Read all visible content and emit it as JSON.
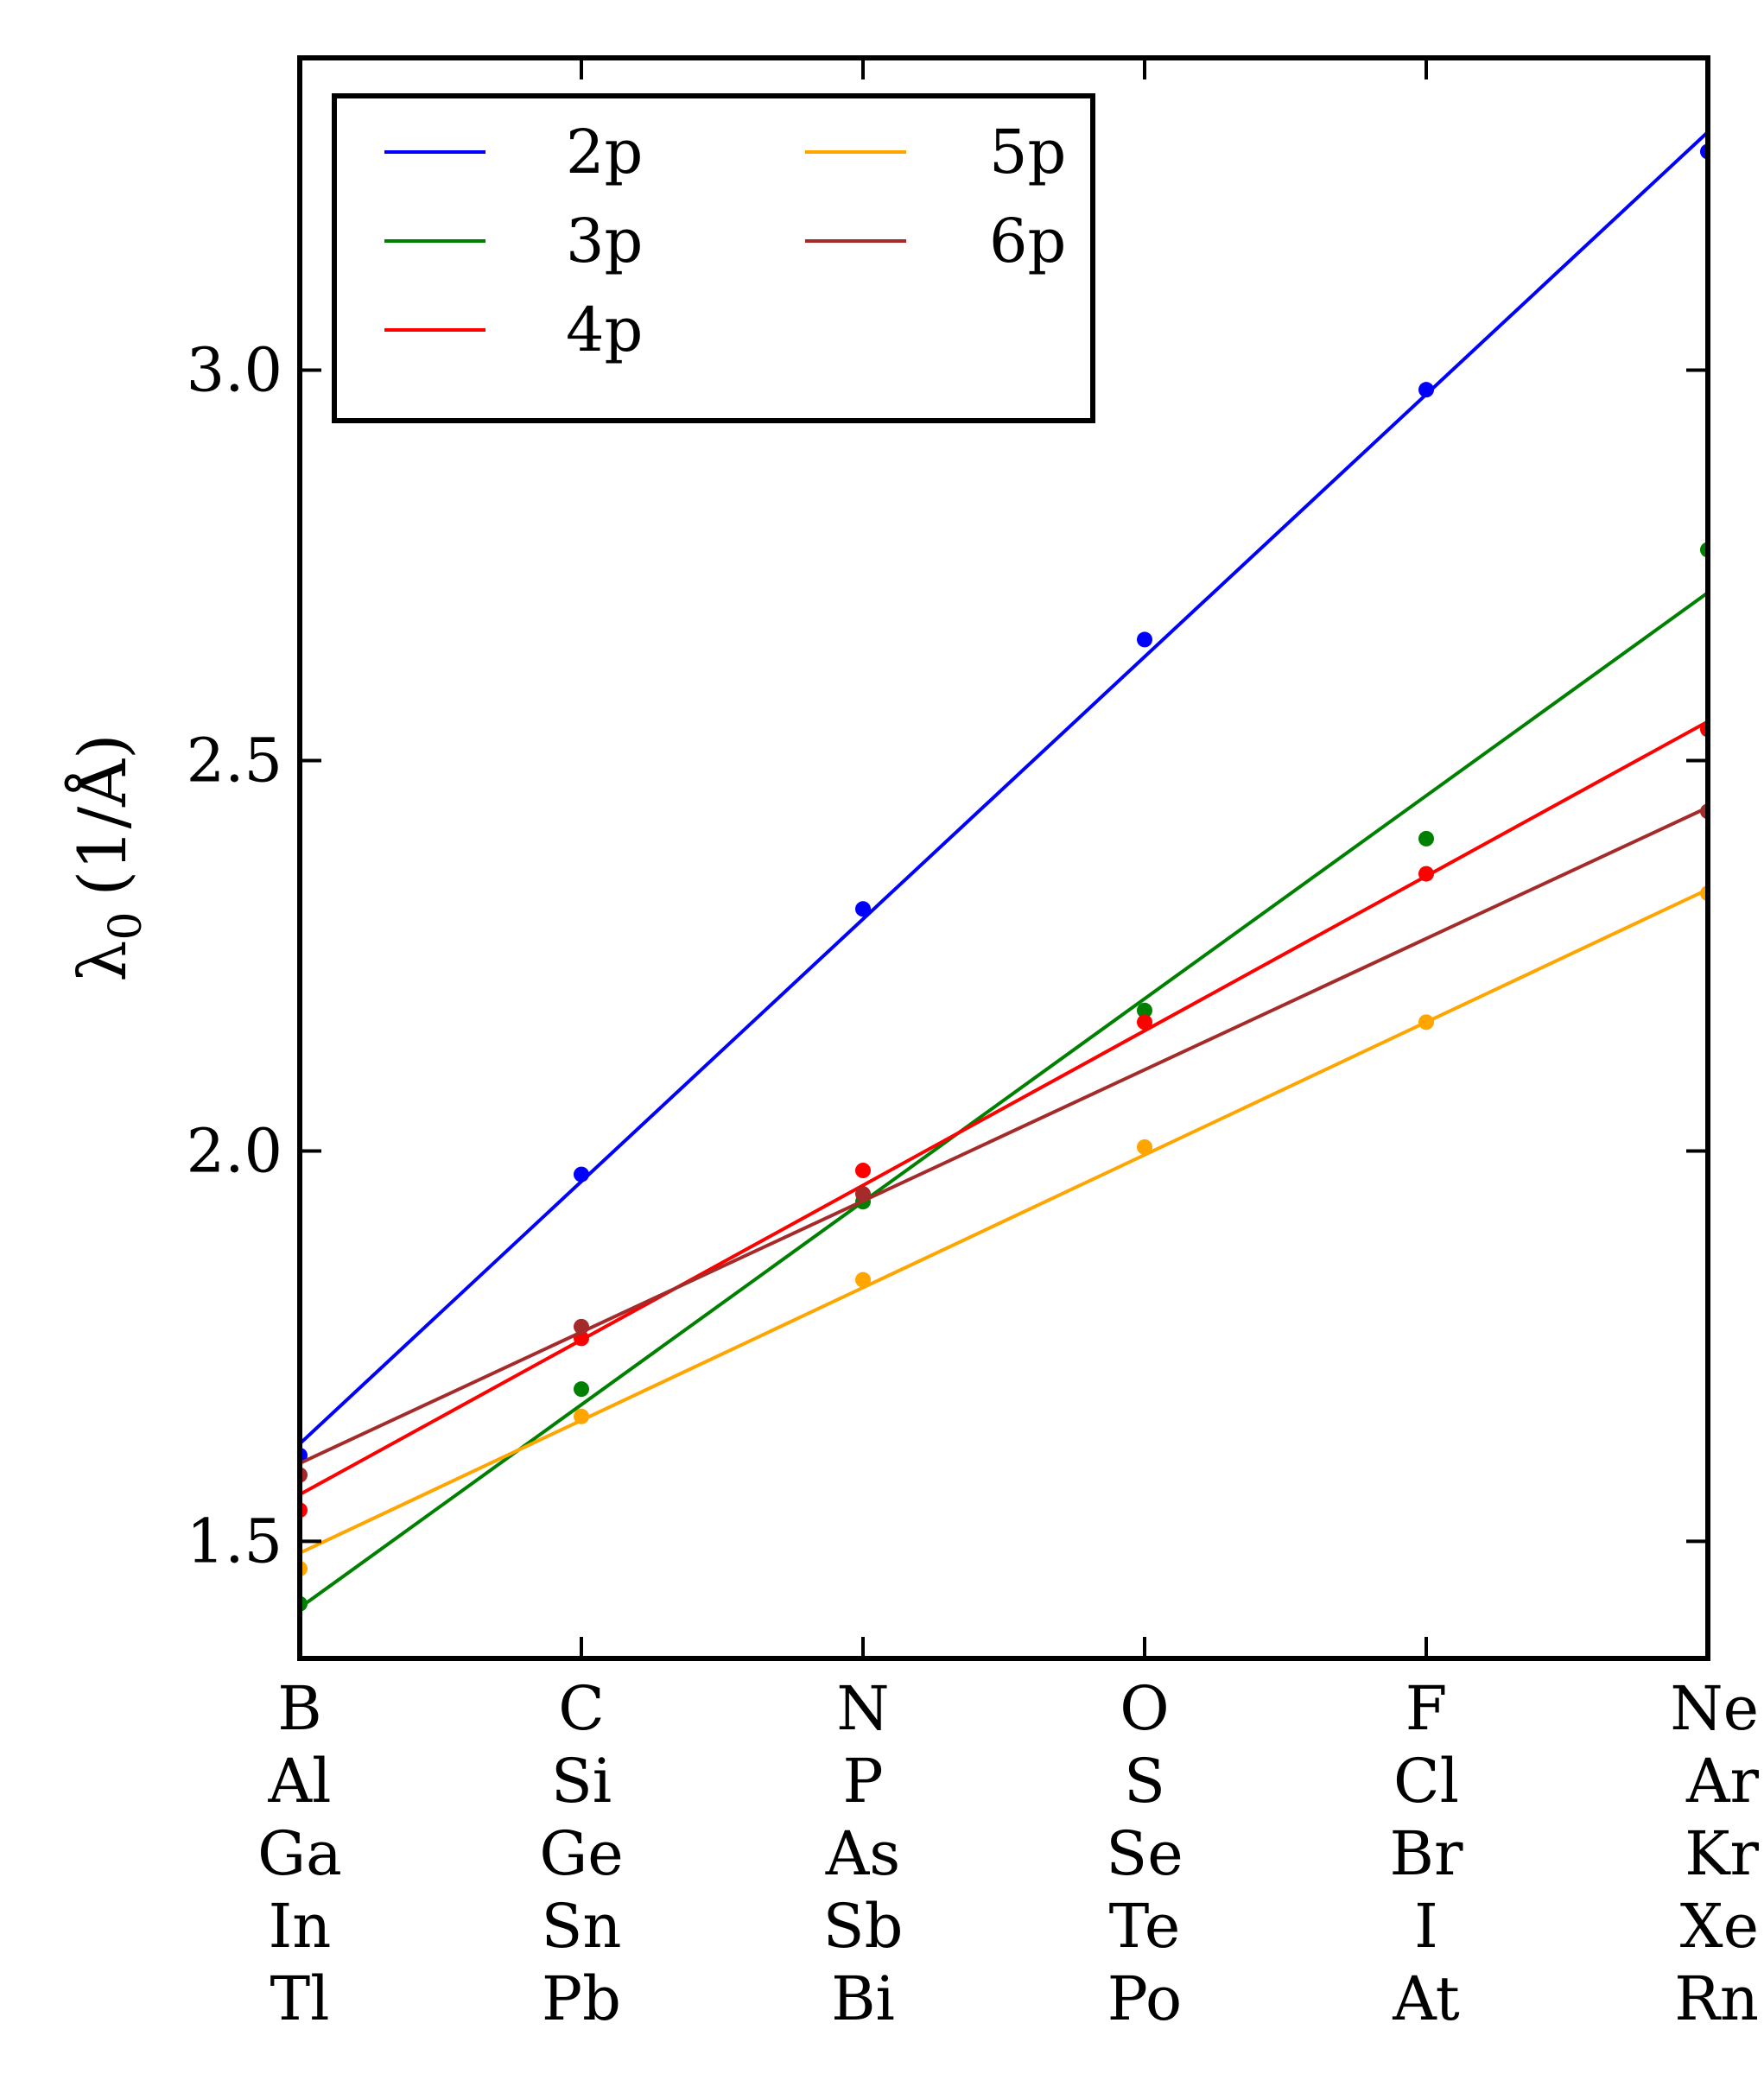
{
  "chart_data": {
    "type": "scatter",
    "categories": [
      "B",
      "C",
      "N",
      "O",
      "F",
      "Ne"
    ],
    "category_rows": [
      [
        "B",
        "C",
        "N",
        "O",
        "F",
        "Ne"
      ],
      [
        "Al",
        "Si",
        "P",
        "S",
        "Cl",
        "Ar"
      ],
      [
        "Ga",
        "Ge",
        "As",
        "Se",
        "Br",
        "Kr"
      ],
      [
        "In",
        "Sn",
        "Sb",
        "Te",
        "I",
        "Xe"
      ],
      [
        "Tl",
        "Pb",
        "Bi",
        "Po",
        "At",
        "Rn"
      ]
    ],
    "ylabel": "λ",
    "ylabel_subscript": "0",
    "ylabel_unit": "(1/Å)",
    "ylim": [
      1.35,
      3.4
    ],
    "yticks": [
      1.5,
      2.0,
      2.5,
      3.0
    ],
    "ytick_labels": [
      "1.5",
      "2.0",
      "2.5",
      "3.0"
    ],
    "legend": {
      "placement": "top-left",
      "columns": 2
    },
    "series": [
      {
        "name": "2p",
        "color": "#0000ff",
        "values": [
          1.61,
          1.97,
          2.31,
          2.655,
          2.975,
          3.28
        ],
        "fit": [
          1.625,
          3.305
        ]
      },
      {
        "name": "3p",
        "color": "#008000",
        "values": [
          1.42,
          1.695,
          1.935,
          2.18,
          2.4,
          2.77
        ],
        "fit": [
          1.415,
          2.715
        ]
      },
      {
        "name": "4p",
        "color": "#ff0000",
        "values": [
          1.54,
          1.76,
          1.975,
          2.165,
          2.355,
          2.54
        ],
        "fit": [
          1.56,
          2.55
        ]
      },
      {
        "name": "5p",
        "color": "#ffa500",
        "values": [
          1.465,
          1.66,
          1.835,
          2.005,
          2.165,
          2.33
        ],
        "fit": [
          1.485,
          2.335
        ]
      },
      {
        "name": "6p",
        "color": "#a52a2a",
        "values": [
          1.585,
          1.775,
          1.945,
          null,
          null,
          2.435
        ],
        "fit": [
          1.6,
          2.44
        ]
      }
    ]
  }
}
